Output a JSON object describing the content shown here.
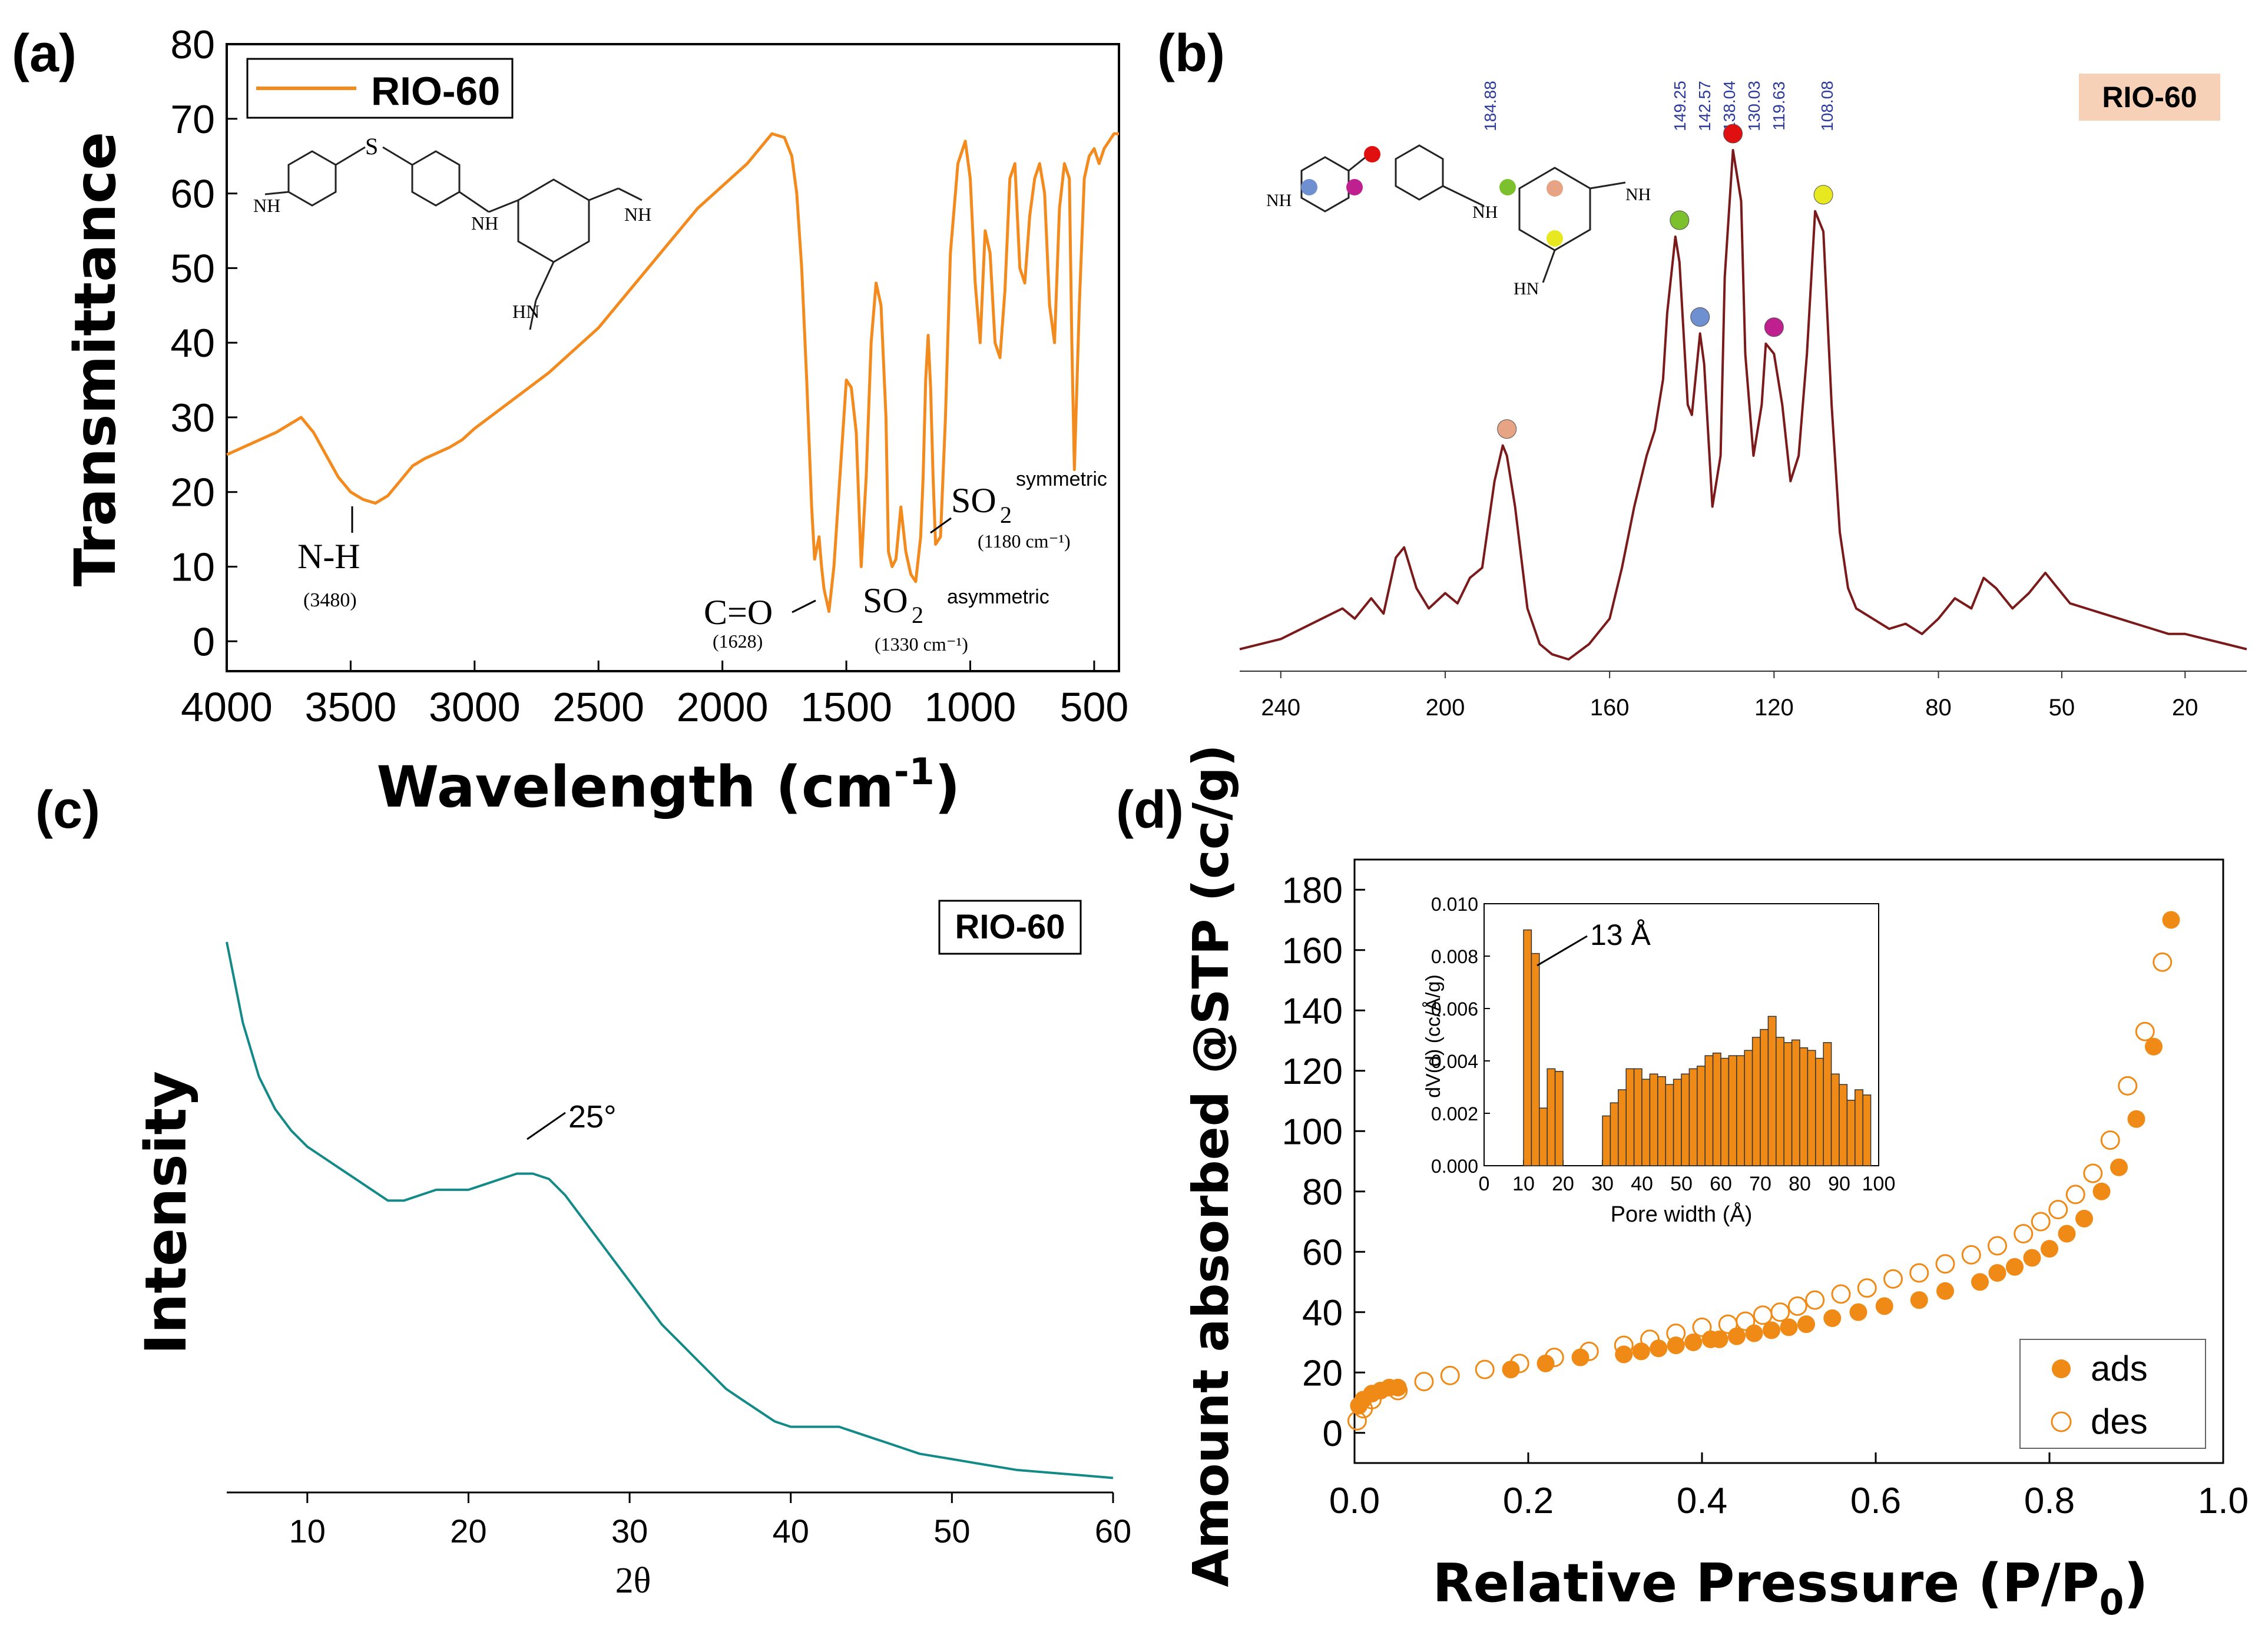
{
  "colors": {
    "ftir": "#F28A1E",
    "nmr": "#7A1A1A",
    "xrd": "#138A88",
    "bet": "#F08A16",
    "nmr_label_bg": "#F7D1B7",
    "nmr_shift_text": "#2B3A9A"
  },
  "panels": {
    "a": {
      "label": "(a)"
    },
    "b": {
      "label": "(b)"
    },
    "c": {
      "label": "(c)"
    },
    "d": {
      "label": "(d)"
    }
  },
  "chart_data": [
    {
      "id": "a",
      "type": "line",
      "title": "",
      "xlabel": "Wavelength (cm",
      "xlabel_sup": "-1",
      "xlabel_end": ")",
      "ylabel": "Transmittance",
      "xlim": [
        4000,
        400
      ],
      "ylim": [
        -4,
        80
      ],
      "xticks": [
        4000,
        3500,
        3000,
        2500,
        2000,
        1500,
        1000,
        500
      ],
      "yticks": [
        0,
        10,
        20,
        30,
        40,
        50,
        60,
        70,
        80
      ],
      "legend": "RIO-60",
      "series": [
        {
          "name": "RIO-60",
          "x": [
            4000,
            3900,
            3800,
            3700,
            3650,
            3600,
            3550,
            3500,
            3450,
            3400,
            3350,
            3300,
            3250,
            3200,
            3100,
            3050,
            3000,
            2900,
            2800,
            2700,
            2600,
            2500,
            2400,
            2300,
            2200,
            2100,
            2000,
            1900,
            1850,
            1800,
            1750,
            1720,
            1700,
            1680,
            1660,
            1640,
            1628,
            1610,
            1600,
            1590,
            1570,
            1550,
            1520,
            1500,
            1480,
            1460,
            1440,
            1420,
            1400,
            1380,
            1360,
            1340,
            1330,
            1315,
            1300,
            1280,
            1260,
            1240,
            1220,
            1200,
            1190,
            1180,
            1170,
            1160,
            1150,
            1140,
            1120,
            1100,
            1080,
            1050,
            1020,
            1000,
            980,
            960,
            940,
            920,
            900,
            880,
            860,
            840,
            820,
            800,
            780,
            760,
            740,
            720,
            700,
            680,
            660,
            640,
            620,
            600,
            590,
            580,
            560,
            540,
            520,
            500,
            480,
            460,
            440,
            420,
            400
          ],
          "y": [
            25,
            26.5,
            28,
            30,
            28,
            25,
            22,
            20,
            19,
            18.5,
            19.5,
            21.5,
            23.5,
            24.5,
            26,
            27,
            28.5,
            31,
            33.5,
            36,
            39,
            42,
            46,
            50,
            54,
            58,
            61,
            64,
            66,
            68,
            67.5,
            65,
            60,
            50,
            35,
            18,
            11,
            14,
            10,
            7,
            4,
            10,
            25,
            35,
            34,
            28,
            10,
            22,
            40,
            48,
            45,
            30,
            12,
            10,
            11,
            18,
            12,
            9,
            8,
            14,
            22,
            35,
            41,
            34,
            22,
            13,
            14,
            30,
            52,
            64,
            67,
            62,
            48,
            40,
            55,
            52,
            40,
            38,
            47,
            62,
            64,
            50,
            48,
            57,
            62,
            64,
            60,
            45,
            40,
            58,
            64,
            62,
            40,
            23,
            45,
            62,
            65,
            66,
            64,
            66,
            67,
            68,
            68
          ]
        }
      ],
      "annotations": [
        {
          "text": "N-H",
          "sub": "(3480)"
        },
        {
          "text": "C=O",
          "sub": "(1628)"
        },
        {
          "text": "SO",
          "sub_digit": "2",
          "sup": "asymmetric",
          "sub": "(1330 cm⁻¹)"
        },
        {
          "text": "SO",
          "sub_digit": "2",
          "sup": "symmetric",
          "sub": "(1180 cm⁻¹)"
        }
      ]
    },
    {
      "id": "b",
      "type": "line",
      "title": "",
      "label_box": "RIO-60",
      "xlim": [
        250,
        5
      ],
      "xticks": [
        240,
        200,
        160,
        120,
        80,
        50,
        20
      ],
      "shift_labels": [
        "184.88",
        "149.25",
        "142.57",
        "138.04",
        "130.03",
        "119.63",
        "108.08"
      ],
      "series": [
        {
          "name": "RIO-60",
          "x": [
            250,
            240,
            230,
            225,
            222,
            218,
            215,
            212,
            210,
            207,
            204,
            200,
            197,
            194,
            191,
            188,
            186,
            185,
            183,
            180,
            177,
            174,
            170,
            165,
            160,
            157,
            154,
            151,
            149,
            147,
            146,
            144,
            143,
            141,
            140,
            138,
            137,
            135,
            133,
            132,
            130,
            128,
            127,
            125,
            123,
            122,
            120,
            118,
            116,
            114,
            112,
            110,
            108,
            106,
            104,
            102,
            100,
            96,
            92,
            88,
            84,
            80,
            76,
            72,
            69,
            66,
            62,
            58,
            54,
            51,
            48,
            44,
            40,
            36,
            32,
            28,
            24,
            20,
            15,
            10,
            5
          ],
          "y": [
            2,
            4,
            8,
            10,
            8,
            12,
            9,
            20,
            22,
            14,
            10,
            13,
            11,
            16,
            18,
            35,
            42,
            40,
            30,
            10,
            3,
            1,
            0,
            3,
            8,
            18,
            30,
            40,
            45,
            55,
            68,
            83,
            78,
            50,
            48,
            64,
            58,
            30,
            40,
            75,
            100,
            90,
            60,
            40,
            50,
            62,
            60,
            50,
            35,
            40,
            60,
            88,
            84,
            50,
            25,
            14,
            10,
            8,
            6,
            7,
            5,
            8,
            12,
            10,
            16,
            14,
            10,
            13,
            17,
            14,
            11,
            10,
            9,
            8,
            7,
            6,
            5,
            5,
            4,
            3,
            2
          ]
        }
      ]
    },
    {
      "id": "c",
      "type": "line",
      "title": "",
      "label_box": "RIO-60",
      "xlabel": "2θ",
      "ylabel": "Intensity",
      "xlim": [
        5,
        60
      ],
      "ylim": [
        0,
        100
      ],
      "xticks": [
        10,
        20,
        30,
        40,
        50,
        60
      ],
      "peak_annotation": "25°",
      "series": [
        {
          "name": "RIO-60",
          "x": [
            5,
            6,
            7,
            8,
            9,
            10,
            11,
            12,
            13,
            14,
            15,
            16,
            17,
            18,
            19,
            20,
            21,
            22,
            23,
            24,
            25,
            26,
            27,
            28,
            29,
            30,
            31,
            32,
            33,
            34,
            35,
            36,
            37,
            38,
            39,
            40,
            41,
            42,
            43,
            44,
            45,
            46,
            47,
            48,
            50,
            52,
            54,
            56,
            58,
            60
          ],
          "y": [
            100,
            85,
            75,
            69,
            65,
            62,
            60,
            58,
            56,
            54,
            52,
            52,
            53,
            54,
            54,
            54,
            55,
            56,
            57,
            57,
            56,
            53,
            49,
            45,
            41,
            37,
            33,
            29,
            26,
            23,
            20,
            17,
            15,
            13,
            11,
            10,
            10,
            10,
            10,
            9,
            8,
            7,
            6,
            5,
            4,
            3,
            2,
            1.5,
            1,
            0.5
          ]
        }
      ]
    },
    {
      "id": "d",
      "type": "scatter",
      "title": "",
      "xlabel": "Relative Pressure (P/P",
      "xlabel_sub": "0",
      "xlabel_end": ")",
      "ylabel": "Amount absorbed @STP (cc/g)",
      "xlim": [
        0.0,
        1.0
      ],
      "ylim": [
        -10,
        190
      ],
      "xticks": [
        "0.0",
        "0.2",
        "0.4",
        "0.6",
        "0.8",
        "1.0"
      ],
      "yticks": [
        0,
        20,
        40,
        60,
        80,
        100,
        120,
        140,
        160,
        180
      ],
      "legend": [
        "ads",
        "des"
      ],
      "series": [
        {
          "name": "ads",
          "filled": true,
          "x": [
            0.005,
            0.01,
            0.02,
            0.03,
            0.04,
            0.05,
            0.18,
            0.22,
            0.26,
            0.31,
            0.33,
            0.35,
            0.37,
            0.39,
            0.41,
            0.42,
            0.44,
            0.46,
            0.48,
            0.5,
            0.52,
            0.55,
            0.58,
            0.61,
            0.65,
            0.68,
            0.72,
            0.74,
            0.76,
            0.78,
            0.8,
            0.82,
            0.84,
            0.86,
            0.88,
            0.9,
            0.92,
            0.94
          ],
          "y": [
            9,
            11,
            13,
            14,
            15,
            15,
            21,
            23,
            25,
            26,
            27,
            28,
            29,
            30,
            31,
            31,
            32,
            33,
            34,
            35,
            36,
            38,
            40,
            42,
            44,
            47,
            50,
            53,
            55,
            58,
            61,
            66,
            71,
            80,
            88,
            104,
            128,
            170
          ]
        },
        {
          "name": "des",
          "filled": false,
          "x": [
            0.003,
            0.01,
            0.02,
            0.05,
            0.08,
            0.11,
            0.15,
            0.19,
            0.23,
            0.27,
            0.31,
            0.34,
            0.37,
            0.4,
            0.43,
            0.45,
            0.47,
            0.49,
            0.51,
            0.53,
            0.56,
            0.59,
            0.62,
            0.65,
            0.68,
            0.71,
            0.74,
            0.77,
            0.79,
            0.81,
            0.83,
            0.85,
            0.87,
            0.89,
            0.91,
            0.93
          ],
          "y": [
            4,
            8,
            11,
            14,
            17,
            19,
            21,
            23,
            25,
            27,
            29,
            31,
            33,
            35,
            36,
            37,
            39,
            40,
            42,
            44,
            46,
            48,
            51,
            53,
            56,
            59,
            62,
            66,
            70,
            74,
            79,
            86,
            97,
            115,
            133,
            156
          ]
        }
      ],
      "inset": {
        "type": "bar",
        "xlabel": "Pore width (Å)",
        "ylabel": "dV(d) (cc/Å/g)",
        "xlim": [
          0,
          100
        ],
        "ylim": [
          0,
          0.01
        ],
        "xticks": [
          0,
          10,
          20,
          30,
          40,
          50,
          60,
          70,
          80,
          90,
          100
        ],
        "yticks": [
          "0.000",
          "0.002",
          "0.004",
          "0.006",
          "0.008",
          "0.010"
        ],
        "annotation": "13 Å",
        "bars": [
          {
            "x": 10,
            "v": 0.009
          },
          {
            "x": 12,
            "v": 0.0081
          },
          {
            "x": 14,
            "v": 0.0022
          },
          {
            "x": 16,
            "v": 0.0037
          },
          {
            "x": 18,
            "v": 0.0036
          },
          {
            "x": 30,
            "v": 0.0019
          },
          {
            "x": 32,
            "v": 0.0024
          },
          {
            "x": 34,
            "v": 0.0029
          },
          {
            "x": 36,
            "v": 0.0037
          },
          {
            "x": 38,
            "v": 0.0037
          },
          {
            "x": 40,
            "v": 0.0033
          },
          {
            "x": 42,
            "v": 0.0035
          },
          {
            "x": 44,
            "v": 0.0034
          },
          {
            "x": 46,
            "v": 0.0031
          },
          {
            "x": 48,
            "v": 0.0033
          },
          {
            "x": 50,
            "v": 0.0035
          },
          {
            "x": 52,
            "v": 0.0037
          },
          {
            "x": 54,
            "v": 0.0038
          },
          {
            "x": 56,
            "v": 0.0042
          },
          {
            "x": 58,
            "v": 0.0043
          },
          {
            "x": 60,
            "v": 0.0041
          },
          {
            "x": 62,
            "v": 0.0042
          },
          {
            "x": 64,
            "v": 0.0042
          },
          {
            "x": 66,
            "v": 0.0044
          },
          {
            "x": 68,
            "v": 0.0049
          },
          {
            "x": 70,
            "v": 0.0052
          },
          {
            "x": 72,
            "v": 0.0057
          },
          {
            "x": 74,
            "v": 0.0049
          },
          {
            "x": 76,
            "v": 0.0047
          },
          {
            "x": 78,
            "v": 0.0048
          },
          {
            "x": 80,
            "v": 0.0045
          },
          {
            "x": 82,
            "v": 0.0044
          },
          {
            "x": 84,
            "v": 0.0041
          },
          {
            "x": 86,
            "v": 0.0047
          },
          {
            "x": 88,
            "v": 0.0035
          },
          {
            "x": 90,
            "v": 0.0031
          },
          {
            "x": 92,
            "v": 0.0025
          },
          {
            "x": 94,
            "v": 0.0029
          },
          {
            "x": 96,
            "v": 0.0027
          }
        ]
      }
    }
  ]
}
